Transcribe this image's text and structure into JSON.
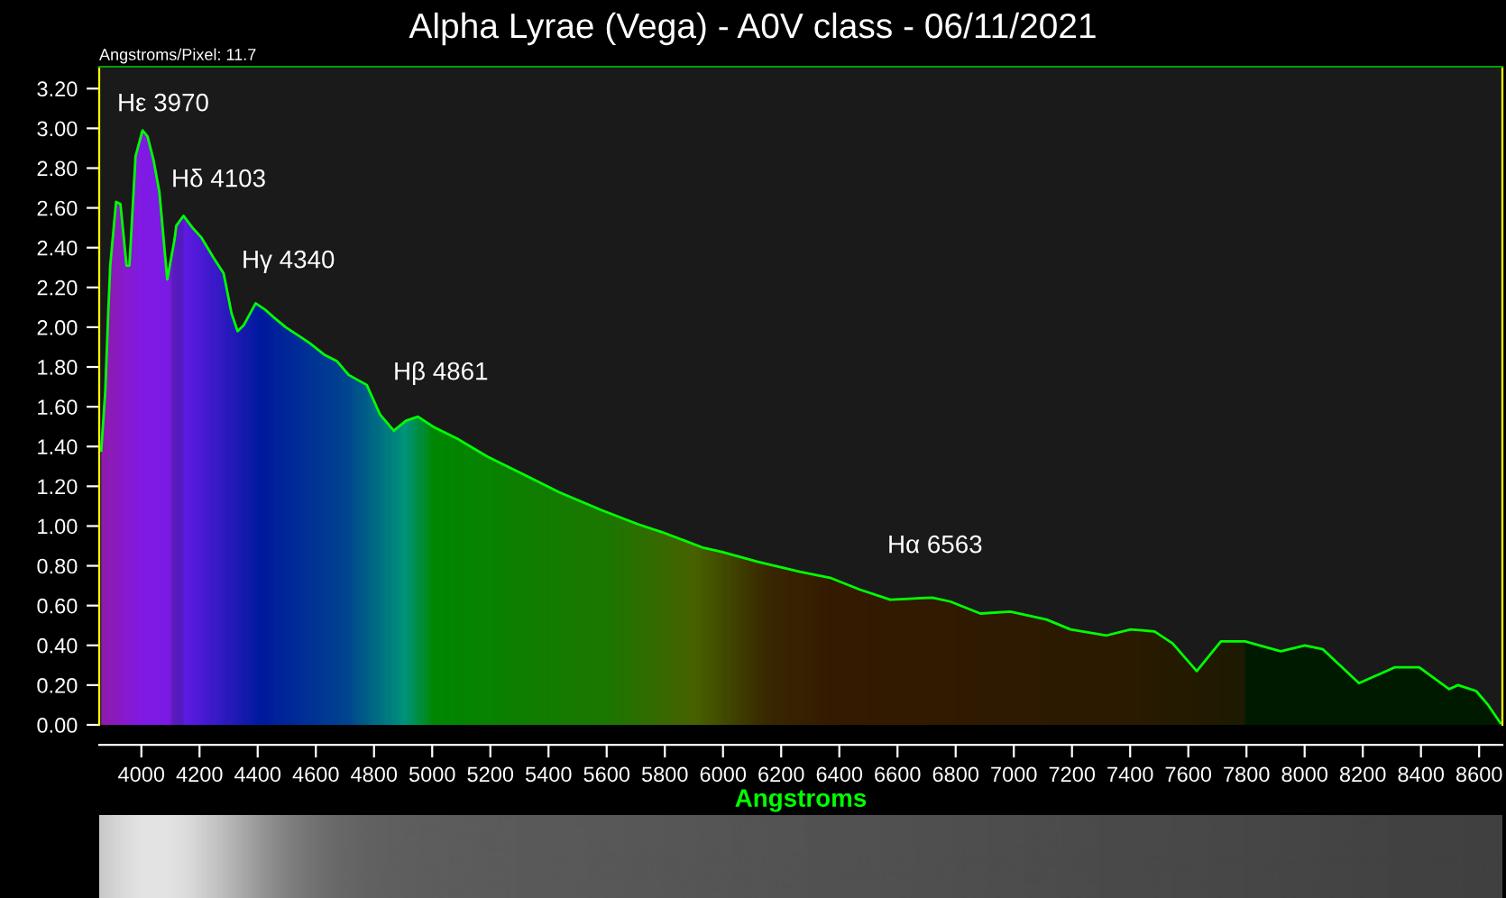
{
  "chart_data": {
    "type": "area",
    "title": "Alpha Lyrae (Vega) - A0V class - 06/11/2021",
    "xlabel": "Angstroms",
    "annotations": [
      "Angstroms/Pixel: 11.7",
      "Hε 3970",
      "Hδ 4103",
      "Hγ 4340",
      "Hβ 4861",
      "Hα 6563"
    ],
    "series": [
      {
        "color": "#00ff00",
        "x": [
          3862,
          3876,
          3886,
          3893,
          3913,
          3928,
          3949,
          3959,
          3980,
          4004,
          4021,
          4042,
          4062,
          4089,
          4114,
          4120,
          4145,
          4176,
          4207,
          4248,
          4283,
          4310,
          4331,
          4352,
          4393,
          4424,
          4455,
          4496,
          4548,
          4579,
          4631,
          4672,
          4713,
          4775,
          4821,
          4868,
          4910,
          4951,
          5003,
          5086,
          5189,
          5313,
          5437,
          5582,
          5706,
          5789,
          5934,
          5996,
          6120,
          6264,
          6368,
          6471,
          6575,
          6720,
          6782,
          6885,
          6988,
          7112,
          7195,
          7319,
          7402,
          7484,
          7546,
          7629,
          7712,
          7795,
          7918,
          8001,
          8063,
          8187,
          8311,
          8394,
          8497,
          8528,
          8590,
          8631,
          8673
        ],
        "values": [
          1.38,
          1.68,
          2.07,
          2.31,
          2.63,
          2.62,
          2.31,
          2.31,
          2.86,
          2.99,
          2.96,
          2.84,
          2.68,
          2.24,
          2.44,
          2.51,
          2.56,
          2.5,
          2.45,
          2.35,
          2.27,
          2.07,
          1.98,
          2.01,
          2.12,
          2.09,
          2.05,
          2.0,
          1.95,
          1.92,
          1.86,
          1.83,
          1.76,
          1.71,
          1.56,
          1.48,
          1.53,
          1.55,
          1.5,
          1.44,
          1.35,
          1.26,
          1.17,
          1.08,
          1.01,
          0.97,
          0.89,
          0.87,
          0.82,
          0.77,
          0.74,
          0.68,
          0.63,
          0.64,
          0.62,
          0.56,
          0.57,
          0.53,
          0.48,
          0.45,
          0.48,
          0.47,
          0.41,
          0.27,
          0.42,
          0.42,
          0.37,
          0.4,
          0.38,
          0.21,
          0.29,
          0.29,
          0.18,
          0.2,
          0.17,
          0.1,
          0.01
        ]
      }
    ],
    "xlim": [
      3855,
      8680
    ],
    "xticks": [
      4000,
      4200,
      4400,
      4600,
      4800,
      5000,
      5200,
      5400,
      5600,
      5800,
      6000,
      6200,
      6400,
      6600,
      6800,
      7000,
      7200,
      7400,
      7600,
      7800,
      8000,
      8200,
      8400,
      8600
    ],
    "ylim": [
      0,
      3.31
    ],
    "yticks": [
      {
        "value": 0,
        "label": "0.00"
      },
      {
        "value": 0.2,
        "label": "0.20"
      },
      {
        "value": 0.4,
        "label": "0.40"
      },
      {
        "value": 0.6,
        "label": "0.60"
      },
      {
        "value": 0.8,
        "label": "0.80"
      },
      {
        "value": 1.0,
        "label": "1.00"
      },
      {
        "value": 1.2,
        "label": "1.20"
      },
      {
        "value": 1.4,
        "label": "1.40"
      },
      {
        "value": 1.6,
        "label": "1.60"
      },
      {
        "value": 1.8,
        "label": "1.80"
      },
      {
        "value": 2.0,
        "label": "2.00"
      },
      {
        "value": 2.2,
        "label": "2.20"
      },
      {
        "value": 2.4,
        "label": "2.40"
      },
      {
        "value": 2.6,
        "label": "2.60"
      },
      {
        "value": 2.8,
        "label": "2.80"
      },
      {
        "value": 3.0,
        "label": "3.00"
      },
      {
        "value": 3.2,
        "label": "3.20"
      }
    ],
    "grid": false,
    "legend": false
  }
}
